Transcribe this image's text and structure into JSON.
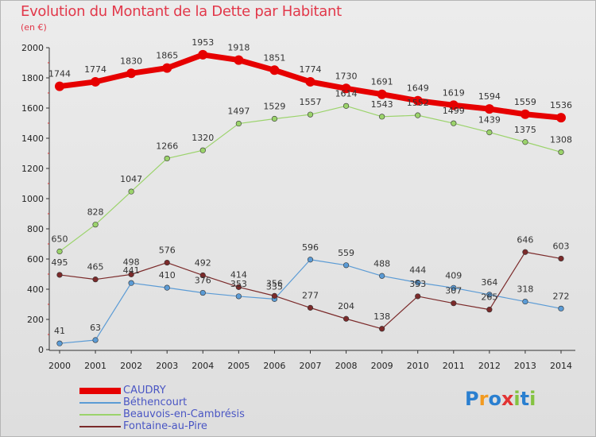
{
  "title": "Evolution du Montant de la Dette par Habitant",
  "unit": "(en €)",
  "logo": {
    "text": "Proxiti",
    "letters": [
      "P",
      "r",
      "o",
      "x",
      "i",
      "t",
      "i"
    ],
    "colors": [
      "#2a7fd0",
      "#f29a1f",
      "#2a7fd0",
      "#e23333",
      "#84c341",
      "#2a7fd0",
      "#84c341"
    ]
  },
  "chart_data": {
    "type": "line",
    "x": [
      "2000",
      "2001",
      "2002",
      "2003",
      "2004",
      "2005",
      "2006",
      "2007",
      "2008",
      "2009",
      "2010",
      "2011",
      "2012",
      "2013",
      "2014"
    ],
    "ylim": [
      0,
      2000
    ],
    "yticks": [
      0,
      200,
      400,
      600,
      800,
      1000,
      1200,
      1400,
      1600,
      1800,
      2000
    ],
    "grid": false,
    "legend_position": "bottom-left",
    "series": [
      {
        "name": "CAUDRY",
        "color": "#e60000",
        "values": [
          1744,
          1774,
          1830,
          1865,
          1953,
          1918,
          1851,
          1774,
          1730,
          1691,
          1649,
          1619,
          1594,
          1559,
          1536
        ]
      },
      {
        "name": "Béthencourt",
        "color": "#5b9bd5",
        "values": [
          41,
          63,
          441,
          410,
          376,
          353,
          335,
          596,
          559,
          488,
          444,
          409,
          364,
          318,
          272
        ]
      },
      {
        "name": "Beauvois-en-Cambrésis",
        "color": "#9bd36b",
        "values": [
          650,
          828,
          1047,
          1266,
          1320,
          1497,
          1529,
          1557,
          1614,
          1543,
          1552,
          1499,
          1439,
          1375,
          1308
        ]
      },
      {
        "name": "Fontaine-au-Pire",
        "color": "#7b2a2a",
        "values": [
          495,
          465,
          498,
          576,
          492,
          414,
          356,
          277,
          204,
          138,
          353,
          307,
          265,
          646,
          603
        ]
      }
    ]
  }
}
